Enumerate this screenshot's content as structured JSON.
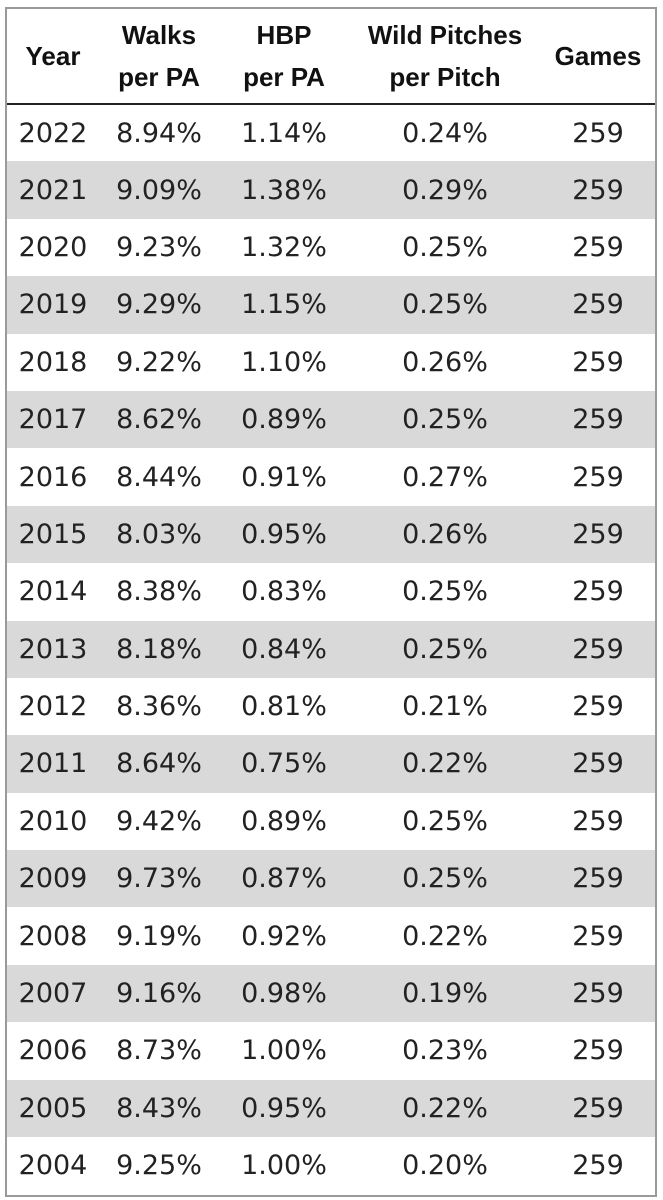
{
  "chart_data": {
    "type": "table",
    "columns": [
      "Year",
      "Walks per PA",
      "HBP per PA",
      "Wild Pitches per Pitch",
      "Games"
    ],
    "header_lines": [
      [
        "Year"
      ],
      [
        "Walks",
        "per PA"
      ],
      [
        "HBP",
        "per PA"
      ],
      [
        "Wild Pitches",
        "per Pitch"
      ],
      [
        "Games"
      ]
    ],
    "rows": [
      [
        "2022",
        "8.94%",
        "1.14%",
        "0.24%",
        "259"
      ],
      [
        "2021",
        "9.09%",
        "1.38%",
        "0.29%",
        "259"
      ],
      [
        "2020",
        "9.23%",
        "1.32%",
        "0.25%",
        "259"
      ],
      [
        "2019",
        "9.29%",
        "1.15%",
        "0.25%",
        "259"
      ],
      [
        "2018",
        "9.22%",
        "1.10%",
        "0.26%",
        "259"
      ],
      [
        "2017",
        "8.62%",
        "0.89%",
        "0.25%",
        "259"
      ],
      [
        "2016",
        "8.44%",
        "0.91%",
        "0.27%",
        "259"
      ],
      [
        "2015",
        "8.03%",
        "0.95%",
        "0.26%",
        "259"
      ],
      [
        "2014",
        "8.38%",
        "0.83%",
        "0.25%",
        "259"
      ],
      [
        "2013",
        "8.18%",
        "0.84%",
        "0.25%",
        "259"
      ],
      [
        "2012",
        "8.36%",
        "0.81%",
        "0.21%",
        "259"
      ],
      [
        "2011",
        "8.64%",
        "0.75%",
        "0.22%",
        "259"
      ],
      [
        "2010",
        "9.42%",
        "0.89%",
        "0.25%",
        "259"
      ],
      [
        "2009",
        "9.73%",
        "0.87%",
        "0.25%",
        "259"
      ],
      [
        "2008",
        "9.19%",
        "0.92%",
        "0.22%",
        "259"
      ],
      [
        "2007",
        "9.16%",
        "0.98%",
        "0.19%",
        "259"
      ],
      [
        "2006",
        "8.73%",
        "1.00%",
        "0.23%",
        "259"
      ],
      [
        "2005",
        "8.43%",
        "0.95%",
        "0.22%",
        "259"
      ],
      [
        "2004",
        "9.25%",
        "1.00%",
        "0.20%",
        "259"
      ]
    ],
    "row_stripe_color": "#d9d9d9",
    "header_border_color": "#222222",
    "outer_border_color": "#9a9a9a"
  }
}
